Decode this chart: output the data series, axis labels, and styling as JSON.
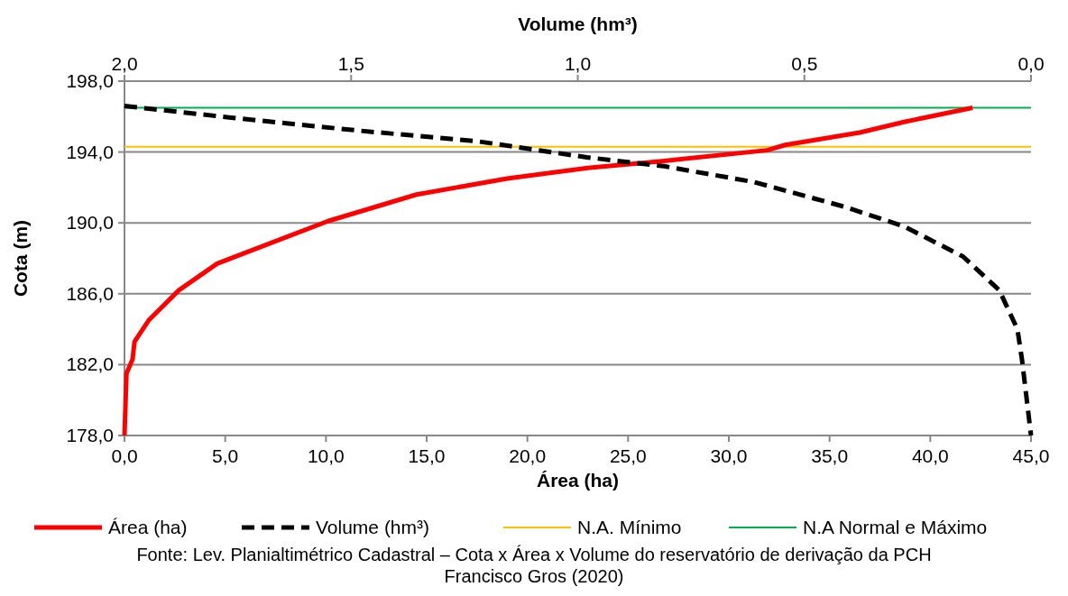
{
  "chart_data": {
    "type": "line",
    "xlabel": "Área (ha)",
    "x2label": "Volume (hm³)",
    "ylabel": "Cota (m)",
    "xlim": [
      0,
      45
    ],
    "xticks": [
      {
        "value": 0,
        "label": "0,0"
      },
      {
        "value": 5,
        "label": "5,0"
      },
      {
        "value": 10,
        "label": "10,0"
      },
      {
        "value": 15,
        "label": "15,0"
      },
      {
        "value": 20,
        "label": "20,0"
      },
      {
        "value": 25,
        "label": "25,0"
      },
      {
        "value": 30,
        "label": "30,0"
      },
      {
        "value": 35,
        "label": "35,0"
      },
      {
        "value": 40,
        "label": "40,0"
      },
      {
        "value": 45,
        "label": "45,0"
      }
    ],
    "x2lim": [
      2,
      0
    ],
    "x2ticks": [
      {
        "value": 2,
        "label": "2,0"
      },
      {
        "value": 1.5,
        "label": "1,5"
      },
      {
        "value": 1,
        "label": "1,0"
      },
      {
        "value": 0.5,
        "label": "0,5"
      },
      {
        "value": 0,
        "label": "0,0"
      }
    ],
    "ylim": [
      178,
      198
    ],
    "yticks": [
      {
        "value": 178,
        "label": "178,0"
      },
      {
        "value": 182,
        "label": "182,0"
      },
      {
        "value": 186,
        "label": "186,0"
      },
      {
        "value": 190,
        "label": "190,0"
      },
      {
        "value": 194,
        "label": "194,0"
      },
      {
        "value": 198,
        "label": "198,0"
      }
    ],
    "grid": "y",
    "legend": "bottom",
    "marker": "none",
    "series": [
      {
        "name": "Área (ha)",
        "color": "#ff0000",
        "line_style": "solid",
        "x": [
          0,
          0.1,
          0.4,
          0.5,
          1.2,
          2.7,
          4.6,
          10.1,
          14.5,
          19.0,
          23.0,
          26.8,
          31.9,
          32.8,
          36.5,
          38.7,
          42.1
        ],
        "values": [
          178,
          181.5,
          182.3,
          183.3,
          184.5,
          186.2,
          187.7,
          190.1,
          191.6,
          192.5,
          193.1,
          193.5,
          194.1,
          194.4,
          195.1,
          195.7,
          196.5
        ]
      },
      {
        "name": "Volume (hm³)",
        "color": "#000000",
        "axis": "x2",
        "line_style": "dashed",
        "x": [
          2.0,
          1.75,
          1.48,
          1.22,
          0.98,
          0.81,
          0.61,
          0.41,
          0.28,
          0.15,
          0.07,
          0.03,
          0.02,
          0
        ],
        "values": [
          196.6,
          195.9,
          195.2,
          194.6,
          193.7,
          193.2,
          192.3,
          190.9,
          189.8,
          188.1,
          186.2,
          184.0,
          182.3,
          178
        ]
      }
    ],
    "ref_lines": [
      {
        "axis": "y",
        "value": 194.3,
        "label": "N.A. Mínimo",
        "color": "#ffc000"
      },
      {
        "axis": "y",
        "value": 196.5,
        "label": "N.A Normal e Máximo",
        "color": "#00b050"
      }
    ],
    "annotations": [
      "Fonte: Lev. Planialtimétrico Cadastral – Cota x Área x Volume do reservatório de derivação da PCH Francisco Gros (2020)"
    ]
  }
}
